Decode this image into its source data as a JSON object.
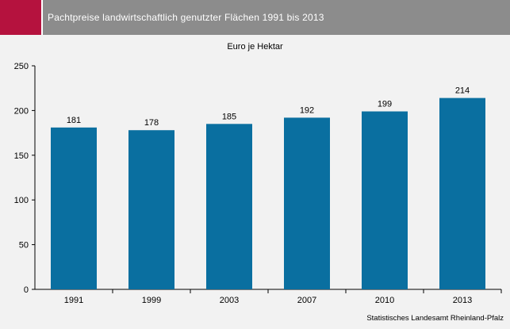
{
  "header": {
    "title": "Pachtpreise landwirtschaftlich genutzter Flächen 1991 bis 2013"
  },
  "source": "Statistisches Landesamt Rheinland-Pfalz",
  "colors": {
    "bar": "#0a6fa0",
    "accent": "#b5123e",
    "header": "#8c8c8c",
    "background": "#f2f2f2"
  },
  "chart_data": {
    "type": "bar",
    "title": "Pachtpreise landwirtschaftlich genutzter Flächen 1991 bis 2013",
    "ylabel": "Euro je Hektar",
    "xlabel": "",
    "categories": [
      "1991",
      "1999",
      "2003",
      "2007",
      "2010",
      "2013"
    ],
    "values": [
      181,
      178,
      185,
      192,
      199,
      214
    ],
    "ylim": [
      0,
      250
    ],
    "yticks": [
      0,
      50,
      100,
      150,
      200,
      250
    ],
    "grid": false,
    "data_labels": true
  }
}
